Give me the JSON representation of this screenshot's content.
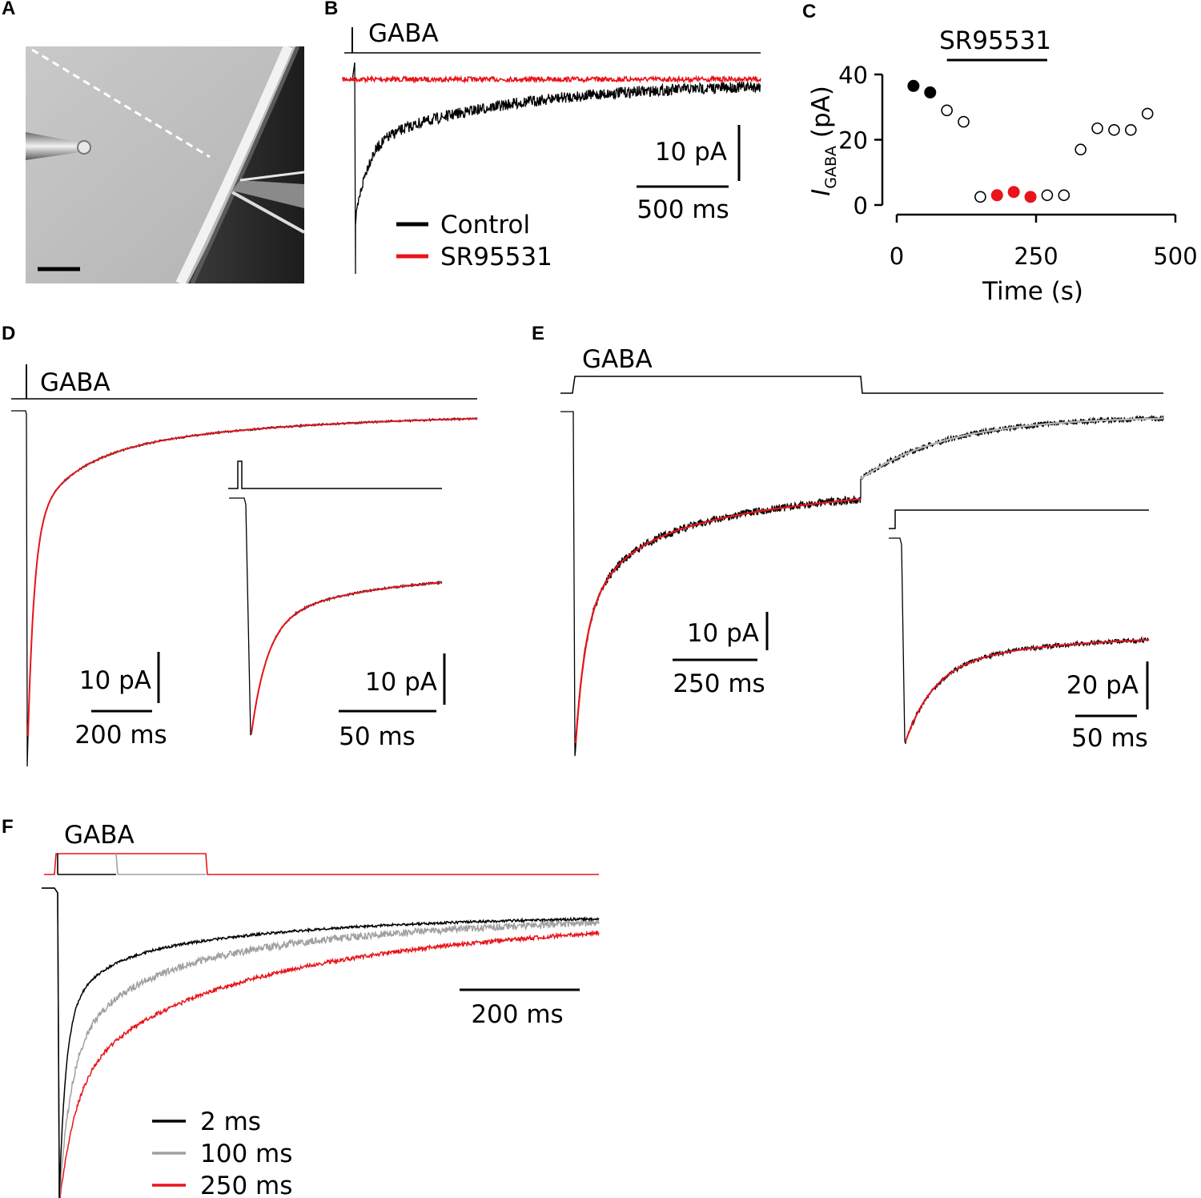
{
  "panels": {
    "A": {
      "label": "A"
    },
    "B": {
      "label": "B",
      "stimulus_label": "GABA",
      "scale_y": "10 pA",
      "scale_x": "500 ms",
      "legend": [
        {
          "name": "Control",
          "color": "#000000"
        },
        {
          "name": "SR95531",
          "color": "#e8141a"
        }
      ]
    },
    "C": {
      "label": "C"
    },
    "D": {
      "label": "D",
      "stimulus_label": "GABA",
      "scale_y": "10 pA",
      "scale_x": "200 ms",
      "inset_scale_y": "10 pA",
      "inset_scale_x": "50 ms"
    },
    "E": {
      "label": "E",
      "stimulus_label": "GABA",
      "scale_y": "10 pA",
      "scale_x": "250 ms",
      "inset_scale_y": "20 pA",
      "inset_scale_x": "50 ms"
    },
    "F": {
      "label": "F",
      "stimulus_label": "GABA",
      "scale_x": "200 ms",
      "legend": [
        {
          "name": "2 ms",
          "color": "#000000"
        },
        {
          "name": "100 ms",
          "color": "#a0a0a0"
        },
        {
          "name": "250 ms",
          "color": "#e8141a"
        }
      ]
    }
  },
  "chart_data": [
    {
      "panel": "C",
      "type": "scatter",
      "xlabel": "Time (s)",
      "ylabel_main": "I",
      "ylabel_subscript": "GABA",
      "ylabel_unit": " (pA)",
      "xlim": [
        0,
        500
      ],
      "ylim": [
        0,
        40
      ],
      "xticks": [
        "0",
        "250",
        "500"
      ],
      "yticks": [
        "0",
        "20",
        "40"
      ],
      "annotation": "SR95531",
      "annotation_range": [
        90,
        270
      ],
      "points": [
        {
          "x": 30,
          "y": 36.5,
          "style": "filled-black"
        },
        {
          "x": 60,
          "y": 34.5,
          "style": "filled-black"
        },
        {
          "x": 90,
          "y": 29,
          "style": "open"
        },
        {
          "x": 120,
          "y": 25.5,
          "style": "open"
        },
        {
          "x": 150,
          "y": 2.5,
          "style": "open"
        },
        {
          "x": 180,
          "y": 3,
          "style": "filled-red"
        },
        {
          "x": 210,
          "y": 4,
          "style": "filled-red"
        },
        {
          "x": 240,
          "y": 2.5,
          "style": "filled-red"
        },
        {
          "x": 270,
          "y": 3,
          "style": "open"
        },
        {
          "x": 300,
          "y": 3,
          "style": "open"
        },
        {
          "x": 330,
          "y": 17,
          "style": "open"
        },
        {
          "x": 360,
          "y": 23.5,
          "style": "open"
        },
        {
          "x": 390,
          "y": 23,
          "style": "open"
        },
        {
          "x": 420,
          "y": 23,
          "style": "open"
        },
        {
          "x": 450,
          "y": 28,
          "style": "open"
        }
      ],
      "colors": {
        "filled-black": "#000000",
        "filled-red": "#e8141a",
        "open": "#ffffff"
      }
    }
  ]
}
